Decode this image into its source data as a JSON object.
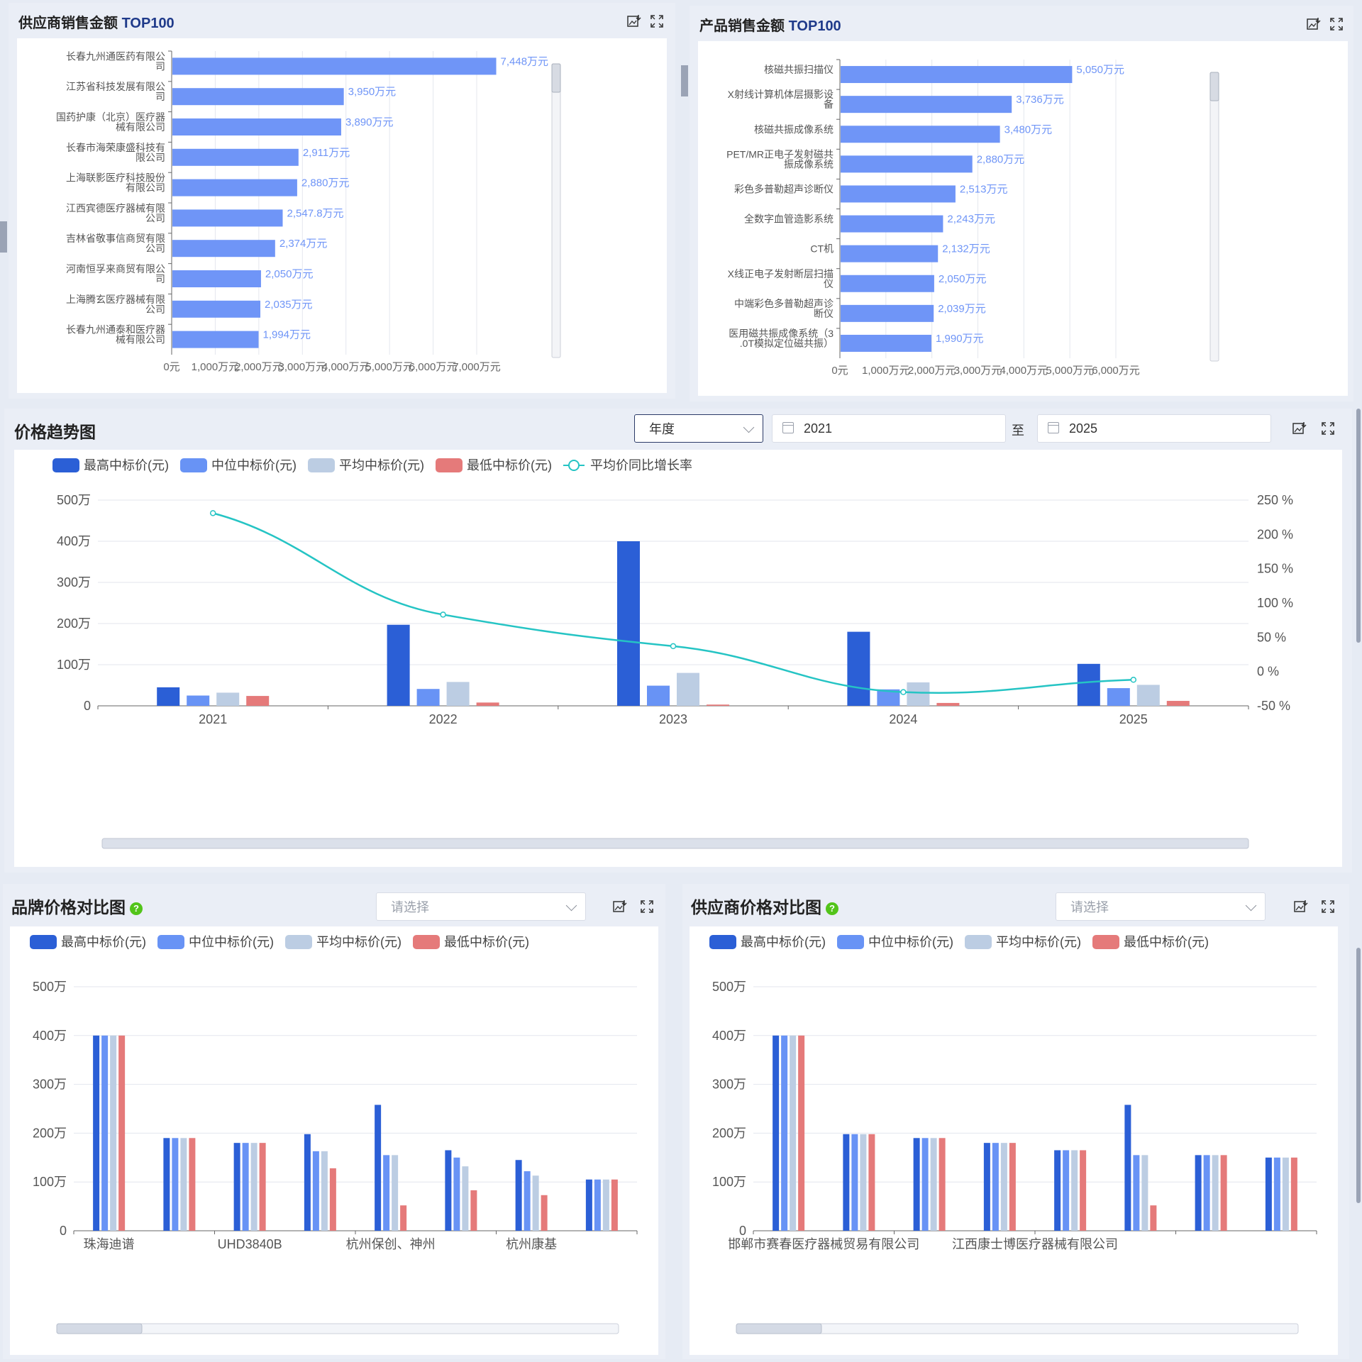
{
  "supplier_top": {
    "title": "供应商销售金额",
    "title_suffix": "TOP100"
  },
  "product_top": {
    "title": "产品销售金额",
    "title_suffix": "TOP100"
  },
  "price_trend": {
    "title": "价格趋势图",
    "period_select": "年度",
    "date_from": "2021",
    "date_sep": "至",
    "date_to": "2025"
  },
  "brand_compare": {
    "title": "品牌价格对比图",
    "help": "?",
    "select_placeholder": "请选择"
  },
  "supplier_compare": {
    "title": "供应商价格对比图",
    "help": "?",
    "select_placeholder": "请选择"
  },
  "colors": {
    "max": "#2b5fd6",
    "median": "#6893f5",
    "avg": "#bccde3",
    "min": "#e57a7a",
    "line": "#25c4c4",
    "hbar": "#6f95f7"
  },
  "chart_data": [
    {
      "id": "supplier",
      "type": "bar",
      "orientation": "horizontal",
      "categories": [
        "长春九州通医药有限公司",
        "江苏省科技发展有限公司",
        "国药护康（北京）医疗器械有限公司",
        "长春市海荣康盛科技有限公司",
        "上海联影医疗科技股份有限公司",
        "江西宾德医疗器械有限公司",
        "吉林省敬事信商贸有限公司",
        "河南恒孚来商贸有限公司",
        "上海腾玄医疗器械有限公司",
        "长春九州通泰和医疗器械有限公司"
      ],
      "category_lines": [
        [
          "长春九州通医药有限公",
          "司"
        ],
        [
          "江苏省科技发展有限公",
          "司"
        ],
        [
          "国药护康（北京）医疗器",
          "械有限公司"
        ],
        [
          "长春市海荣康盛科技有",
          "限公司"
        ],
        [
          "上海联影医疗科技股份",
          "有限公司"
        ],
        [
          "江西宾德医疗器械有限",
          "公司"
        ],
        [
          "吉林省敬事信商贸有限",
          "公司"
        ],
        [
          "河南恒孚来商贸有限公",
          "司"
        ],
        [
          "上海腾玄医疗器械有限",
          "公司"
        ],
        [
          "长春九州通泰和医疗器",
          "械有限公司"
        ]
      ],
      "values": [
        7448,
        3950,
        3890,
        2911,
        2880,
        2547.8,
        2374,
        2050,
        2035,
        1994
      ],
      "value_labels": [
        "7,448万元",
        "3,950万元",
        "3,890万元",
        "2,911万元",
        "2,880万元",
        "2,547.8万元",
        "2,374万元",
        "2,050万元",
        "2,035万元",
        "1,994万元"
      ],
      "xlim": [
        0,
        7000
      ],
      "x_ticks": [
        0,
        1000,
        2000,
        3000,
        4000,
        5000,
        6000,
        7000
      ],
      "x_tick_labels": [
        "0元",
        "1,000万元",
        "2,000万元",
        "3,000万元",
        "4,000万元",
        "5,000万元",
        "6,000万元",
        "7,000万元"
      ]
    },
    {
      "id": "product",
      "type": "bar",
      "orientation": "horizontal",
      "categories": [
        "核磁共振扫描仪",
        "X射线计算机体层摄影设备",
        "核磁共振成像系统",
        "PET/MR正电子发射磁共振成像系统",
        "彩色多普勒超声诊断仪",
        "全数字血管造影系统",
        "CT机",
        "X线正电子发射断层扫描仪",
        "中端彩色多普勒超声诊断仪",
        "医用磁共振成像系统（3.0T模拟定位磁共振）"
      ],
      "category_lines": [
        [
          "核磁共振扫描仪"
        ],
        [
          "X射线计算机体层摄影设",
          "备"
        ],
        [
          "核磁共振成像系统"
        ],
        [
          "PET/MR正电子发射磁共",
          "振成像系统"
        ],
        [
          "彩色多普勒超声诊断仪"
        ],
        [
          "全数字血管造影系统"
        ],
        [
          "CT机"
        ],
        [
          "X线正电子发射断层扫描",
          "仪"
        ],
        [
          "中端彩色多普勒超声诊",
          "断仪"
        ],
        [
          "医用磁共振成像系统（3",
          ".0T模拟定位磁共振）"
        ]
      ],
      "values": [
        5050,
        3736,
        3480,
        2880,
        2513,
        2243,
        2132,
        2050,
        2039,
        1990
      ],
      "value_labels": [
        "5,050万元",
        "3,736万元",
        "3,480万元",
        "2,880万元",
        "2,513万元",
        "2,243万元",
        "2,132万元",
        "2,050万元",
        "2,039万元",
        "1,990万元"
      ],
      "xlim": [
        0,
        6000
      ],
      "x_ticks": [
        0,
        1000,
        2000,
        3000,
        4000,
        5000,
        6000
      ],
      "x_tick_labels": [
        "0元",
        "1,000万元",
        "2,000万元",
        "3,000万元",
        "4,000万元",
        "5,000万元",
        "6,000万元"
      ]
    },
    {
      "id": "trend",
      "type": "bar",
      "categories": [
        "2021",
        "2022",
        "2023",
        "2024",
        "2025"
      ],
      "series": [
        {
          "name": "最高中标价(元)",
          "color_key": "max",
          "values": [
            450000,
            1970000,
            4000000,
            1800000,
            1020000
          ]
        },
        {
          "name": "中位中标价(元)",
          "color_key": "median",
          "values": [
            250000,
            410000,
            490000,
            400000,
            430000
          ]
        },
        {
          "name": "平均中标价(元)",
          "color_key": "avg",
          "values": [
            320000,
            580000,
            800000,
            570000,
            510000
          ]
        },
        {
          "name": "最低中标价(元)",
          "color_key": "min",
          "values": [
            240000,
            80000,
            30000,
            70000,
            120000
          ]
        }
      ],
      "line_series": {
        "name": "平均价同比增长率",
        "type": "line",
        "values": [
          231,
          83,
          37,
          -30,
          -12
        ]
      },
      "ylim": [
        0,
        5000000
      ],
      "y_ticks": [
        0,
        1000000,
        2000000,
        3000000,
        4000000,
        5000000
      ],
      "y_tick_labels": [
        "0",
        "100万",
        "200万",
        "300万",
        "400万",
        "500万"
      ],
      "y2lim": [
        -50,
        250
      ],
      "y2_ticks": [
        -50,
        0,
        50,
        100,
        150,
        200,
        250
      ],
      "y2_tick_labels": [
        "-50 %",
        "0 %",
        "50 %",
        "100 %",
        "150 %",
        "200 %",
        "250 %"
      ],
      "legend": "top-left",
      "grid": true
    },
    {
      "id": "brand",
      "type": "bar",
      "categories": [
        "珠海迪谱",
        "",
        "UHD3840B",
        "",
        "杭州保创、神州",
        "",
        "杭州康基",
        ""
      ],
      "x_tick_labels": [
        "珠海迪谱",
        "UHD3840B",
        "杭州保创、神州",
        "杭州康基"
      ],
      "series": [
        {
          "name": "最高中标价(元)",
          "color_key": "max",
          "values": [
            4000000,
            1900000,
            1800000,
            1980000,
            2580000,
            1650000,
            1450000,
            1050000
          ]
        },
        {
          "name": "中位中标价(元)",
          "color_key": "median",
          "values": [
            4000000,
            1900000,
            1800000,
            1630000,
            1550000,
            1500000,
            1220000,
            1050000
          ]
        },
        {
          "name": "平均中标价(元)",
          "color_key": "avg",
          "values": [
            4000000,
            1900000,
            1800000,
            1630000,
            1550000,
            1320000,
            1130000,
            1050000
          ]
        },
        {
          "name": "最低中标价(元)",
          "color_key": "min",
          "values": [
            4000000,
            1900000,
            1800000,
            1280000,
            520000,
            830000,
            730000,
            1050000
          ]
        }
      ],
      "ylim": [
        0,
        5000000
      ],
      "y_ticks": [
        0,
        1000000,
        2000000,
        3000000,
        4000000,
        5000000
      ],
      "y_tick_labels": [
        "0",
        "100万",
        "200万",
        "300万",
        "400万",
        "500万"
      ],
      "legend": "top-left",
      "grid": true
    },
    {
      "id": "supplier_price",
      "type": "bar",
      "categories": [
        "邯郸市赛春医疗器械贸易有限公司",
        "",
        "",
        "江西康士博医疗器械有限公司",
        "",
        "",
        "",
        ""
      ],
      "x_tick_labels": [
        "邯郸市赛春医疗器械贸易有限公司",
        "江西康士博医疗器械有限公司"
      ],
      "series": [
        {
          "name": "最高中标价(元)",
          "color_key": "max",
          "values": [
            4000000,
            1980000,
            1900000,
            1800000,
            1650000,
            2580000,
            1550000,
            1500000
          ]
        },
        {
          "name": "中位中标价(元)",
          "color_key": "median",
          "values": [
            4000000,
            1980000,
            1900000,
            1800000,
            1650000,
            1550000,
            1550000,
            1500000
          ]
        },
        {
          "name": "平均中标价(元)",
          "color_key": "avg",
          "values": [
            4000000,
            1980000,
            1900000,
            1800000,
            1650000,
            1550000,
            1550000,
            1500000
          ]
        },
        {
          "name": "最低中标价(元)",
          "color_key": "min",
          "values": [
            4000000,
            1980000,
            1900000,
            1800000,
            1650000,
            520000,
            1550000,
            1500000
          ]
        }
      ],
      "ylim": [
        0,
        5000000
      ],
      "y_ticks": [
        0,
        1000000,
        2000000,
        3000000,
        4000000,
        5000000
      ],
      "y_tick_labels": [
        "0",
        "100万",
        "200万",
        "300万",
        "400万",
        "500万"
      ],
      "legend": "top-left",
      "grid": true
    }
  ]
}
